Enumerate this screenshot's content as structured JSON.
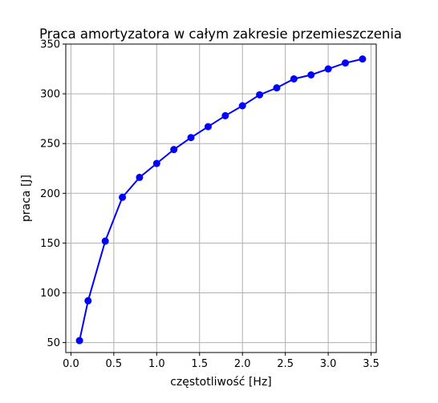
{
  "chart_data": {
    "type": "line",
    "title": "Praca amortyzatora w całym zakresie przemieszczenia",
    "xlabel": "częstotliwość [Hz]",
    "ylabel": "praca [J]",
    "xlim": [
      -0.06,
      3.56
    ],
    "ylim": [
      40,
      350
    ],
    "xticks": [
      0.0,
      0.5,
      1.0,
      1.5,
      2.0,
      2.5,
      3.0,
      3.5
    ],
    "xtick_labels": [
      "0.0",
      "0.5",
      "1.0",
      "1.5",
      "2.0",
      "2.5",
      "3.0",
      "3.5"
    ],
    "yticks": [
      50,
      100,
      150,
      200,
      250,
      300,
      350
    ],
    "ytick_labels": [
      "50",
      "100",
      "150",
      "200",
      "250",
      "300",
      "350"
    ],
    "grid": true,
    "series": [
      {
        "color": "#0000ff",
        "marker": "circle",
        "x": [
          0.1,
          0.2,
          0.4,
          0.6,
          0.8,
          1.0,
          1.2,
          1.4,
          1.6,
          1.8,
          2.0,
          2.2,
          2.4,
          2.6,
          2.8,
          3.0,
          3.2,
          3.4
        ],
        "y": [
          52,
          92,
          152,
          196,
          216,
          230,
          244,
          256,
          267,
          278,
          288,
          299,
          306,
          315,
          319,
          325,
          331,
          335
        ]
      }
    ]
  }
}
